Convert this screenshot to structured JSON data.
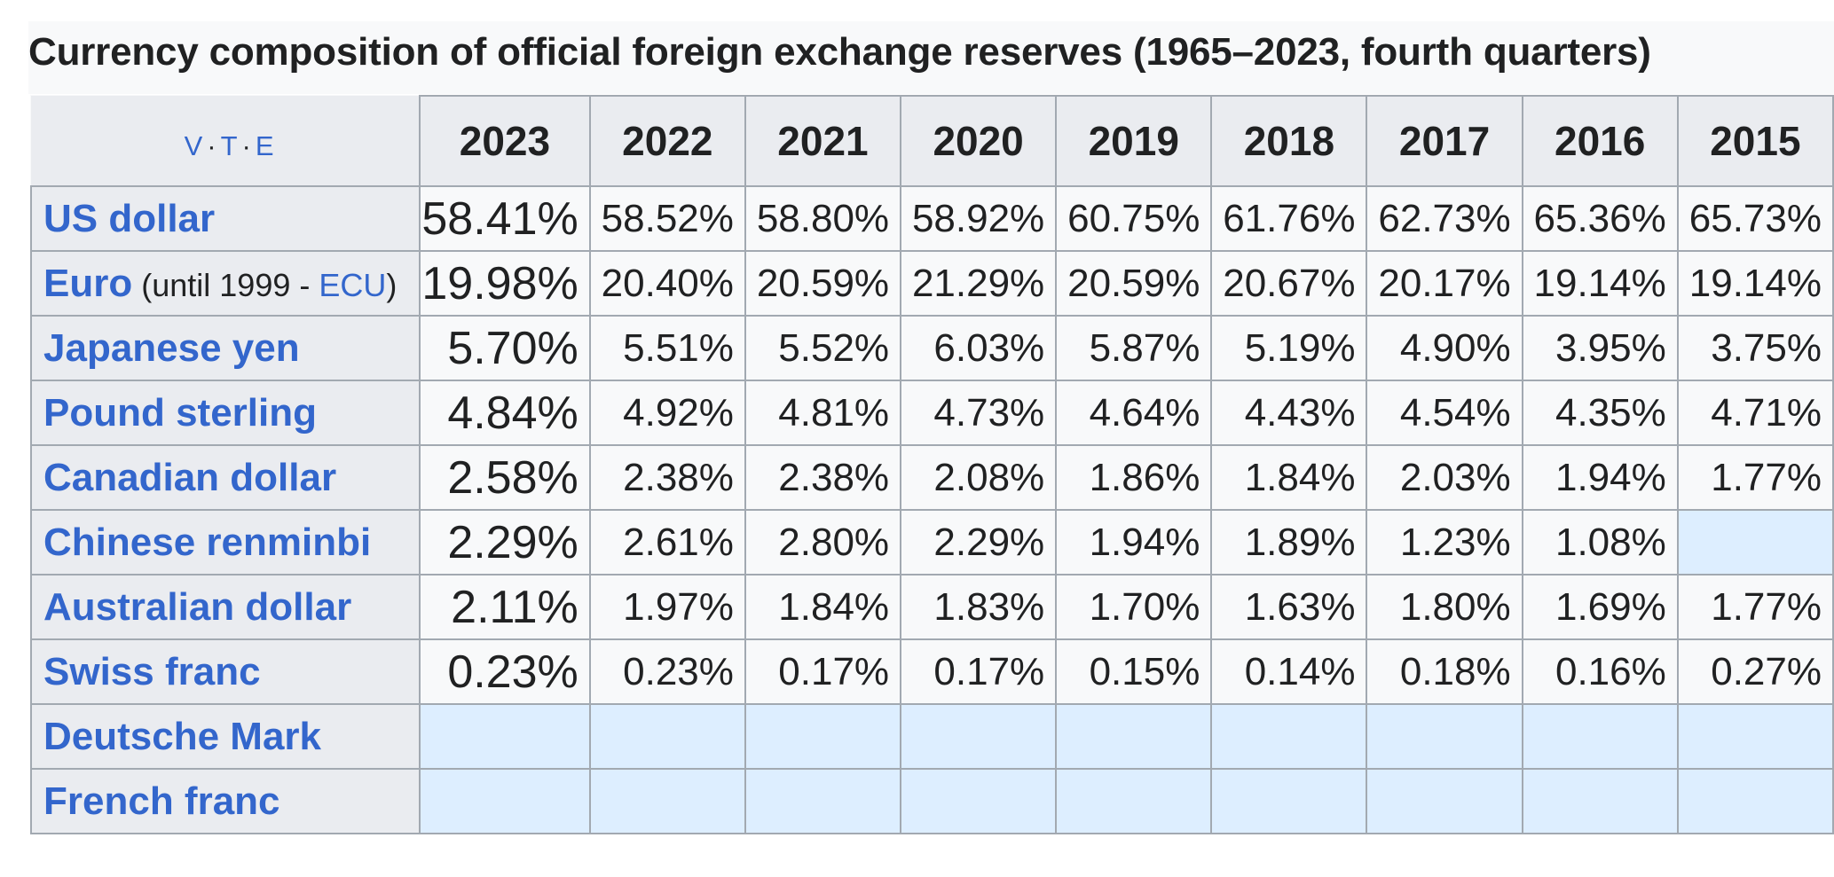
{
  "caption": "Currency composition of official foreign exchange reserves (1965–2023, fourth quarters)",
  "navbox": {
    "v": "V",
    "t": "T",
    "e": "E"
  },
  "years": [
    "2023",
    "2022",
    "2021",
    "2020",
    "2019",
    "2018",
    "2017",
    "2016",
    "2015"
  ],
  "rows": [
    {
      "name": "US dollar",
      "note": "",
      "note_link": "",
      "values": [
        "58.41%",
        "58.52%",
        "58.80%",
        "58.92%",
        "60.75%",
        "61.76%",
        "62.73%",
        "65.36%",
        "65.73%"
      ]
    },
    {
      "name": "Euro",
      "note_pre": "(until 1999 - ",
      "note_link": "ECU",
      "note_post": ")",
      "values": [
        "19.98%",
        "20.40%",
        "20.59%",
        "21.29%",
        "20.59%",
        "20.67%",
        "20.17%",
        "19.14%",
        "19.14%"
      ]
    },
    {
      "name": "Japanese yen",
      "values": [
        "5.70%",
        "5.51%",
        "5.52%",
        "6.03%",
        "5.87%",
        "5.19%",
        "4.90%",
        "3.95%",
        "3.75%"
      ]
    },
    {
      "name": "Pound sterling",
      "values": [
        "4.84%",
        "4.92%",
        "4.81%",
        "4.73%",
        "4.64%",
        "4.43%",
        "4.54%",
        "4.35%",
        "4.71%"
      ]
    },
    {
      "name": "Canadian dollar",
      "values": [
        "2.58%",
        "2.38%",
        "2.38%",
        "2.08%",
        "1.86%",
        "1.84%",
        "2.03%",
        "1.94%",
        "1.77%"
      ]
    },
    {
      "name": "Chinese renminbi",
      "values": [
        "2.29%",
        "2.61%",
        "2.80%",
        "2.29%",
        "1.94%",
        "1.89%",
        "1.23%",
        "1.08%",
        ""
      ]
    },
    {
      "name": "Australian dollar",
      "values": [
        "2.11%",
        "1.97%",
        "1.84%",
        "1.83%",
        "1.70%",
        "1.63%",
        "1.80%",
        "1.69%",
        "1.77%"
      ]
    },
    {
      "name": "Swiss franc",
      "values": [
        "0.23%",
        "0.23%",
        "0.17%",
        "0.17%",
        "0.15%",
        "0.14%",
        "0.18%",
        "0.16%",
        "0.27%"
      ]
    },
    {
      "name": "Deutsche Mark",
      "values": [
        "",
        "",
        "",
        "",
        "",
        "",
        "",
        "",
        ""
      ]
    },
    {
      "name": "French franc",
      "values": [
        "",
        "",
        "",
        "",
        "",
        "",
        "",
        "",
        ""
      ]
    }
  ]
}
